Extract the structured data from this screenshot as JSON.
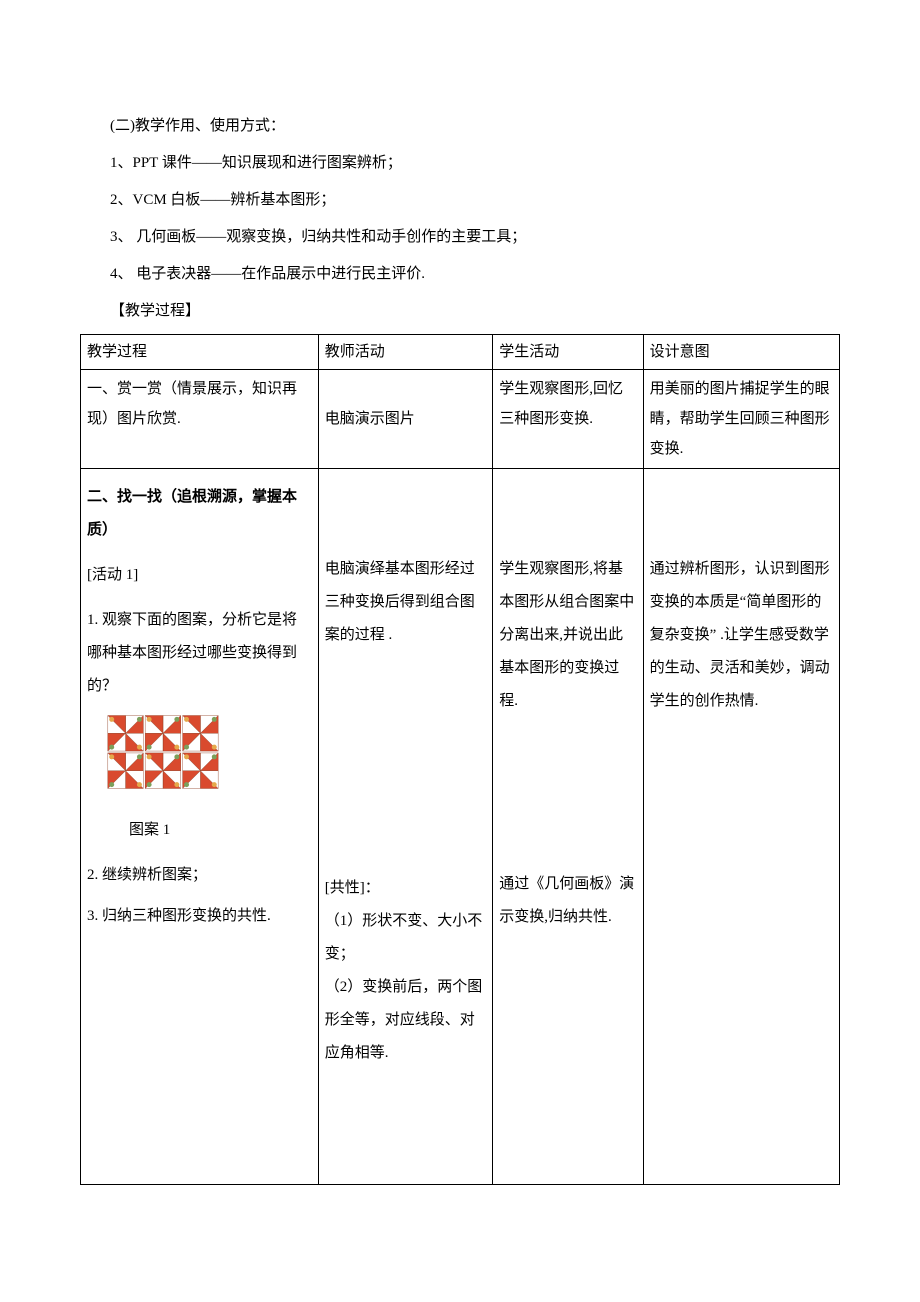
{
  "prelude": {
    "l1": "(二)教学作用、使用方式：",
    "l2": "1、PPT 课件——知识展现和进行图案辨析；",
    "l3": "2、VCM 白板——辨析基本图形；",
    "l4": "3、 几何画板——观察变换，归纳共性和动手创作的主要工具；",
    "l5": "4、 电子表决器——在作品展示中进行民主评价.",
    "l6": "【教学过程】"
  },
  "header": {
    "c0": "教学过程",
    "c1": "教师活动",
    "c2": "学生活动",
    "c3": "设计意图"
  },
  "row1": {
    "c0": "一、赏一赏（情景展示，知识再现）图片欣赏.",
    "c1": "电脑演示图片",
    "c2": "学生观察图形,回忆三种图形变换.",
    "c3": "用美丽的图片捕捉学生的眼睛，帮助学生回顾三种图形变换."
  },
  "row2": {
    "a0": "二、找一找（追根溯源，掌握本质）",
    "a1": "[活动 1]",
    "a2": "1. 观察下面的图案，分析它是将哪种基本图形经过哪些变换得到的？",
    "caption": "图案 1",
    "a3": "2. 继续辨析图案；",
    "a4": "3. 归纳三种图形变换的共性.",
    "b0": "电脑演绎基本图形经过三种变换后得到组合图案的过程 .",
    "b1": "[共性]：",
    "b2": "（1）形状不变、大小不变；",
    "b3": "（2）变换前后，两个图形全等，对应线段、对应角相等.",
    "c0": "学生观察图形,将基本图形从组合图案中分离出来,并说出此基本图形的变换过程.",
    "c1": "通过《几何画板》演示变换,归纳共性.",
    "d0": "通过辨析图形，认识到图形变换的本质是“简单图形的复杂变换” .让学生感受数学的生动、灵活和美妙，调动学生的创作热情."
  },
  "pattern": {
    "colors": {
      "red": "#D94A2E",
      "white": "#FFFFFF",
      "orange": "#E5A84B",
      "green": "#7BA05B",
      "dark": "#8B3A1E"
    },
    "tile_size": 38,
    "grid": {
      "cols": 3,
      "rows": 2
    }
  }
}
